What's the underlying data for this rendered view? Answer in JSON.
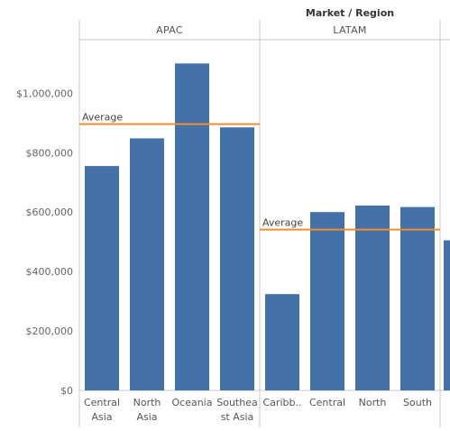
{
  "chart_data": {
    "type": "bar",
    "title": "Market / Region",
    "ylim": [
      0,
      1180000
    ],
    "yticks": [
      {
        "value": 0,
        "label": "$0"
      },
      {
        "value": 200000,
        "label": "$200,000"
      },
      {
        "value": 400000,
        "label": "$400,000"
      },
      {
        "value": 600000,
        "label": "$600,000"
      },
      {
        "value": 800000,
        "label": "$800,000"
      },
      {
        "value": 1000000,
        "label": "$1,000,000"
      }
    ],
    "panels": [
      {
        "name": "APAC",
        "categories": [
          [
            "Central",
            "Asia"
          ],
          [
            "North",
            "Asia"
          ],
          [
            "Oceania"
          ],
          [
            "Southea",
            "st Asia"
          ]
        ],
        "values": [
          755000,
          848000,
          1100000,
          885000
        ],
        "average": 896000,
        "average_label": "Average"
      },
      {
        "name": "LATAM",
        "categories": [
          [
            "Caribb.."
          ],
          [
            "Central"
          ],
          [
            "North"
          ],
          [
            "South"
          ]
        ],
        "values": [
          324000,
          600000,
          622000,
          617000
        ],
        "average": 541000,
        "average_label": "Average"
      }
    ],
    "bar_color": "#4472a8",
    "average_color": "#f28e2b",
    "grid": false
  }
}
